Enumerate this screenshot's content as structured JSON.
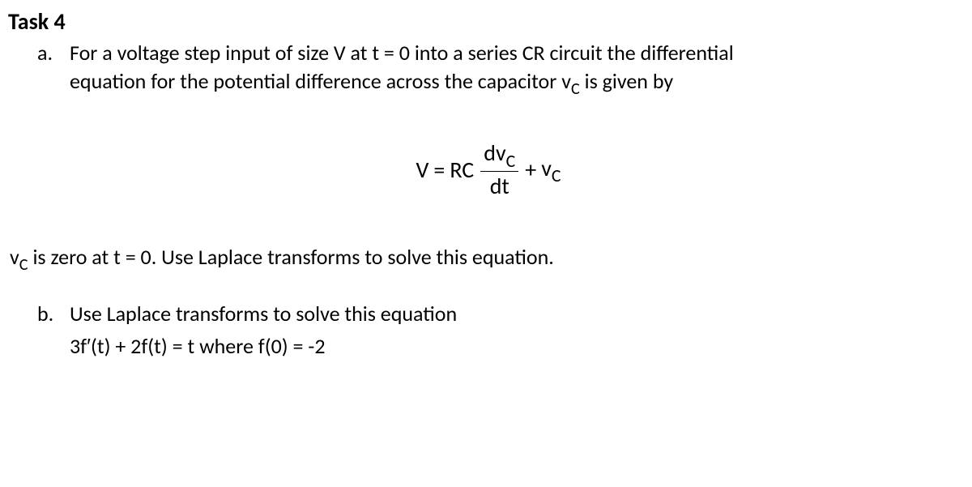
{
  "title": "Task 4",
  "itemA": {
    "marker": "a.",
    "line1": "For a voltage step input of size V at t = 0 into a series CR circuit the differential",
    "line2_pre": "equation for the potential difference across the capacitor v",
    "line2_sub": "c",
    "line2_post": " is given by",
    "eq_left": "V",
    "eq_eq": " = ",
    "eq_rc": "RC",
    "frac_num_pre": "dv",
    "frac_num_sub": "c",
    "frac_den": "dt",
    "eq_plus": " + ",
    "eq_vc_pre": "v",
    "eq_vc_sub": "c",
    "cond_pre": "v",
    "cond_sub": "c",
    "cond_post": "  is zero at t = 0. Use Laplace transforms to solve this equation."
  },
  "itemB": {
    "marker": "b.",
    "line1": "Use Laplace transforms to solve this equation",
    "eq_pre": "3f",
    "eq_prime": "′",
    "eq_post": "(t) + 2f(t) = t   where f(0) = -2"
  }
}
